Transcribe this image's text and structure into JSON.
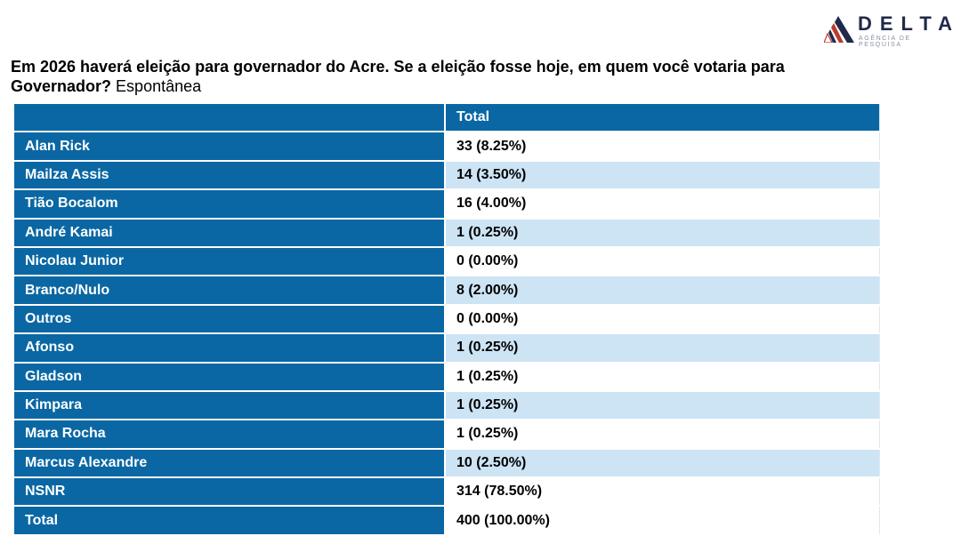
{
  "logo": {
    "name": "DELTA",
    "tagline": "AGÊNCIA DE PESQUISA"
  },
  "title": {
    "question": "Em 2026 haverá eleição para governador do Acre. Se a eleição fosse hoje, em quem você votaria para Governador?",
    "type": "Espontânea"
  },
  "table": {
    "header": {
      "label": "",
      "value": "Total"
    },
    "rows": [
      {
        "label": "Alan Rick",
        "value": "33 (8.25%)"
      },
      {
        "label": "Mailza Assis",
        "value": "14 (3.50%)"
      },
      {
        "label": "Tião Bocalom",
        "value": "16 (4.00%)"
      },
      {
        "label": "André Kamai",
        "value": "1 (0.25%)"
      },
      {
        "label": "Nicolau Junior",
        "value": "0 (0.00%)"
      },
      {
        "label": "Branco/Nulo",
        "value": "8 (2.00%)"
      },
      {
        "label": "Outros",
        "value": "0 (0.00%)"
      },
      {
        "label": "Afonso",
        "value": "1 (0.25%)"
      },
      {
        "label": "Gladson",
        "value": "1 (0.25%)"
      },
      {
        "label": "Kimpara",
        "value": "1 (0.25%)"
      },
      {
        "label": "Mara Rocha",
        "value": "1 (0.25%)"
      },
      {
        "label": "Marcus Alexandre",
        "value": "10 (2.50%)"
      },
      {
        "label": "NSNR",
        "value": "314 (78.50%)"
      },
      {
        "label": "Total",
        "value": "400 (100.00%)"
      }
    ]
  },
  "colors": {
    "header_blue": "#0a67a3",
    "alt_row": "#cde4f5",
    "logo_navy": "#1f2a4a",
    "logo_red": "#c0392b"
  }
}
